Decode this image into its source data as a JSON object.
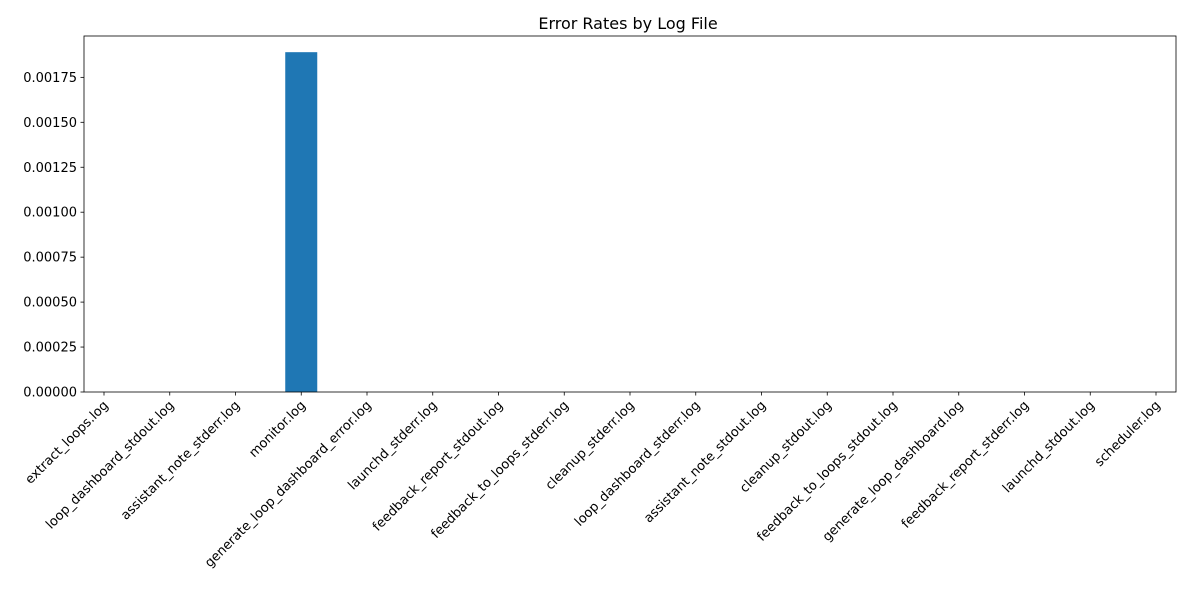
{
  "chart_data": {
    "type": "bar",
    "title": "Error Rates by Log File",
    "xlabel": "",
    "ylabel": "",
    "categories": [
      "extract_loops.log",
      "loop_dashboard_stdout.log",
      "assistant_note_stderr.log",
      "monitor.log",
      "generate_loop_dashboard_error.log",
      "launchd_stderr.log",
      "feedback_report_stdout.log",
      "feedback_to_loops_stderr.log",
      "cleanup_stderr.log",
      "loop_dashboard_stderr.log",
      "assistant_note_stdout.log",
      "cleanup_stdout.log",
      "feedback_to_loops_stdout.log",
      "generate_loop_dashboard.log",
      "feedback_report_stderr.log",
      "launchd_stdout.log",
      "scheduler.log"
    ],
    "values": [
      0,
      0,
      0,
      0.00189,
      0,
      0,
      0,
      0,
      0,
      0,
      0,
      0,
      0,
      0,
      0,
      0,
      0
    ],
    "ylim": [
      0,
      0.00198
    ],
    "yticks": [
      "0.00000",
      "0.00025",
      "0.00050",
      "0.00075",
      "0.00100",
      "0.00125",
      "0.00150",
      "0.00175"
    ],
    "ytick_values": [
      0,
      0.00025,
      0.0005,
      0.00075,
      0.001,
      0.00125,
      0.0015,
      0.00175
    ],
    "bar_color": "#1f77b4",
    "grid": false,
    "legend": "none"
  }
}
